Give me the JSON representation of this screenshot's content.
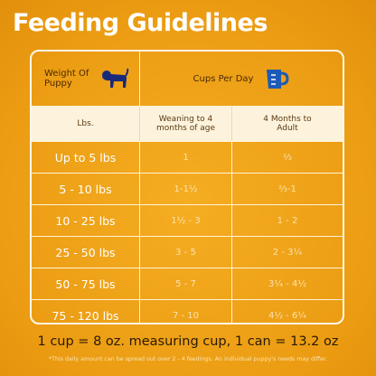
{
  "header": {
    "title": "Feeding Guidelines"
  },
  "table": {
    "header": [
      "Weight Of Puppy",
      "Cups Per Day"
    ],
    "subheader": [
      "Lbs.",
      "Weaning to 4 months of age",
      "4 Months to Adult"
    ],
    "rows": [
      [
        "Up to 5 lbs",
        "1",
        "⅔"
      ],
      [
        "5 - 10 lbs",
        "1-1½",
        "⅔-1"
      ],
      [
        "10 - 25 lbs",
        "1½ - 3",
        "1 - 2"
      ],
      [
        "25 - 50 lbs",
        "3 - 5",
        "2 - 3¼"
      ],
      [
        "50 - 75 lbs",
        "5 - 7",
        "3¼ - 4½"
      ],
      [
        "75 - 120 lbs",
        "7 - 10",
        "4½ - 6¼"
      ]
    ]
  },
  "footer": {
    "note": "1 cup = 8 oz. measuring cup, 1 can = 13.2 oz",
    "footnote": "*This daily amount can be spread out over 2 - 4 feedings. An individual puppy's needs may differ."
  }
}
